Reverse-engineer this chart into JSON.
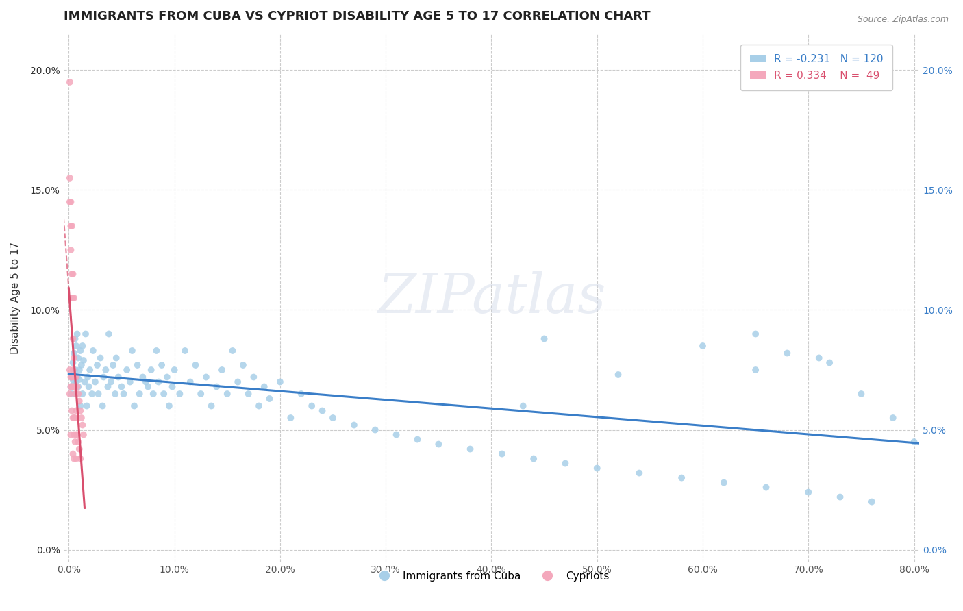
{
  "title": "IMMIGRANTS FROM CUBA VS CYPRIOT DISABILITY AGE 5 TO 17 CORRELATION CHART",
  "source": "Source: ZipAtlas.com",
  "ylabel": "Disability Age 5 to 17",
  "watermark": "ZIPatlas",
  "xlim": [
    -0.005,
    0.805
  ],
  "ylim": [
    -0.005,
    0.215
  ],
  "xticks": [
    0.0,
    0.1,
    0.2,
    0.3,
    0.4,
    0.5,
    0.6,
    0.7,
    0.8
  ],
  "xticklabels": [
    "0.0%",
    "10.0%",
    "20.0%",
    "30.0%",
    "40.0%",
    "50.0%",
    "60.0%",
    "70.0%",
    "80.0%"
  ],
  "yticks": [
    0.0,
    0.05,
    0.1,
    0.15,
    0.2
  ],
  "yticklabels": [
    "0.0%",
    "5.0%",
    "10.0%",
    "15.0%",
    "20.0%"
  ],
  "blue_R": -0.231,
  "blue_N": 120,
  "pink_R": 0.334,
  "pink_N": 49,
  "blue_color": "#a8cfe8",
  "pink_color": "#f4a8bc",
  "blue_line_color": "#3a7ec8",
  "pink_line_color": "#d94f6e",
  "blue_scatter_x": [
    0.002,
    0.003,
    0.003,
    0.004,
    0.004,
    0.005,
    0.005,
    0.006,
    0.006,
    0.007,
    0.007,
    0.007,
    0.008,
    0.008,
    0.009,
    0.009,
    0.01,
    0.01,
    0.011,
    0.011,
    0.012,
    0.013,
    0.013,
    0.014,
    0.015,
    0.016,
    0.017,
    0.018,
    0.019,
    0.02,
    0.022,
    0.023,
    0.025,
    0.027,
    0.028,
    0.03,
    0.032,
    0.033,
    0.035,
    0.037,
    0.038,
    0.04,
    0.042,
    0.044,
    0.045,
    0.047,
    0.05,
    0.052,
    0.055,
    0.058,
    0.06,
    0.062,
    0.065,
    0.067,
    0.07,
    0.073,
    0.075,
    0.078,
    0.08,
    0.083,
    0.085,
    0.088,
    0.09,
    0.093,
    0.095,
    0.098,
    0.1,
    0.105,
    0.11,
    0.115,
    0.12,
    0.125,
    0.13,
    0.135,
    0.14,
    0.145,
    0.15,
    0.155,
    0.16,
    0.165,
    0.17,
    0.175,
    0.18,
    0.185,
    0.19,
    0.2,
    0.21,
    0.22,
    0.23,
    0.24,
    0.25,
    0.27,
    0.29,
    0.31,
    0.33,
    0.35,
    0.38,
    0.41,
    0.44,
    0.47,
    0.5,
    0.54,
    0.58,
    0.62,
    0.66,
    0.7,
    0.73,
    0.76,
    0.45,
    0.6,
    0.65,
    0.68,
    0.72,
    0.75,
    0.78,
    0.8,
    0.65,
    0.71,
    0.52,
    0.43
  ],
  "blue_scatter_y": [
    0.068,
    0.072,
    0.065,
    0.078,
    0.071,
    0.082,
    0.069,
    0.075,
    0.088,
    0.07,
    0.085,
    0.065,
    0.09,
    0.072,
    0.08,
    0.068,
    0.075,
    0.071,
    0.083,
    0.06,
    0.077,
    0.085,
    0.065,
    0.079,
    0.07,
    0.09,
    0.06,
    0.072,
    0.068,
    0.075,
    0.065,
    0.083,
    0.07,
    0.077,
    0.065,
    0.08,
    0.06,
    0.072,
    0.075,
    0.068,
    0.09,
    0.07,
    0.077,
    0.065,
    0.08,
    0.072,
    0.068,
    0.065,
    0.075,
    0.07,
    0.083,
    0.06,
    0.077,
    0.065,
    0.072,
    0.07,
    0.068,
    0.075,
    0.065,
    0.083,
    0.07,
    0.077,
    0.065,
    0.072,
    0.06,
    0.068,
    0.075,
    0.065,
    0.083,
    0.07,
    0.077,
    0.065,
    0.072,
    0.06,
    0.068,
    0.075,
    0.065,
    0.083,
    0.07,
    0.077,
    0.065,
    0.072,
    0.06,
    0.068,
    0.063,
    0.07,
    0.055,
    0.065,
    0.06,
    0.058,
    0.055,
    0.052,
    0.05,
    0.048,
    0.046,
    0.044,
    0.042,
    0.04,
    0.038,
    0.036,
    0.034,
    0.032,
    0.03,
    0.028,
    0.026,
    0.024,
    0.022,
    0.02,
    0.088,
    0.085,
    0.075,
    0.082,
    0.078,
    0.065,
    0.055,
    0.045,
    0.09,
    0.08,
    0.073,
    0.06
  ],
  "pink_scatter_x": [
    0.001,
    0.001,
    0.001,
    0.001,
    0.001,
    0.002,
    0.002,
    0.002,
    0.002,
    0.002,
    0.002,
    0.003,
    0.003,
    0.003,
    0.003,
    0.003,
    0.003,
    0.004,
    0.004,
    0.004,
    0.004,
    0.004,
    0.004,
    0.004,
    0.005,
    0.005,
    0.005,
    0.005,
    0.005,
    0.005,
    0.006,
    0.006,
    0.006,
    0.006,
    0.007,
    0.007,
    0.007,
    0.007,
    0.008,
    0.008,
    0.009,
    0.009,
    0.01,
    0.01,
    0.011,
    0.011,
    0.012,
    0.013,
    0.014
  ],
  "pink_scatter_y": [
    0.195,
    0.155,
    0.145,
    0.075,
    0.065,
    0.145,
    0.135,
    0.125,
    0.072,
    0.068,
    0.048,
    0.135,
    0.115,
    0.105,
    0.072,
    0.068,
    0.058,
    0.115,
    0.105,
    0.088,
    0.075,
    0.068,
    0.055,
    0.04,
    0.105,
    0.08,
    0.068,
    0.055,
    0.048,
    0.038,
    0.072,
    0.065,
    0.055,
    0.045,
    0.072,
    0.058,
    0.048,
    0.038,
    0.068,
    0.048,
    0.065,
    0.045,
    0.062,
    0.042,
    0.058,
    0.038,
    0.055,
    0.052,
    0.048
  ],
  "title_fontsize": 13,
  "axis_fontsize": 11,
  "tick_fontsize": 10,
  "legend_fontsize": 11
}
